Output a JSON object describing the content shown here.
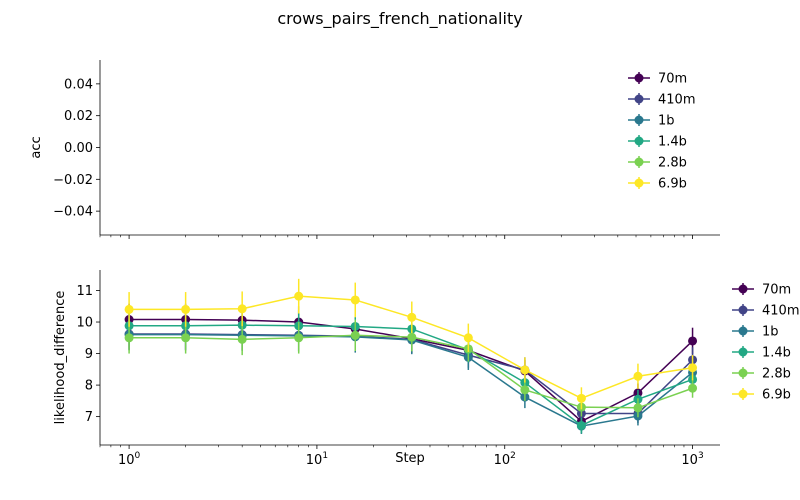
{
  "chart_data": {
    "title": "crows_pairs_french_nationality",
    "xlabel": "Step",
    "x": [
      1,
      2,
      4,
      8,
      16,
      32,
      64,
      128,
      256,
      512,
      1000
    ],
    "x_ticks": [
      {
        "value": 1,
        "base": "10",
        "exp": "0"
      },
      {
        "value": 10,
        "base": "10",
        "exp": "1"
      },
      {
        "value": 100,
        "base": "10",
        "exp": "2"
      },
      {
        "value": 1000,
        "base": "10",
        "exp": "3"
      }
    ],
    "xlim": [
      0.7,
      1400
    ],
    "x_scale": "log",
    "subplots": [
      {
        "type": "line",
        "ylabel": "acc",
        "ylim": [
          -0.055,
          0.055
        ],
        "yticks": [
          0.04,
          0.02,
          0.0,
          -0.02,
          -0.04
        ],
        "ytick_labels": [
          "0.04",
          "0.02",
          "0.00",
          "−0.02",
          "−0.04"
        ],
        "show_x_tick_labels": false,
        "legend": "top-right inside",
        "series": [
          {
            "name": "70m",
            "color": "#440154"
          },
          {
            "name": "410m",
            "color": "#414487"
          },
          {
            "name": "1b",
            "color": "#2a788e"
          },
          {
            "name": "1.4b",
            "color": "#22a884"
          },
          {
            "name": "2.8b",
            "color": "#7ad151"
          },
          {
            "name": "6.9b",
            "color": "#fde725"
          }
        ]
      },
      {
        "type": "line",
        "ylabel": "likelihood_difference",
        "ylim": [
          6.1,
          11.65
        ],
        "yticks": [
          7,
          8,
          9,
          10,
          11
        ],
        "ytick_labels": [
          "7",
          "8",
          "9",
          "10",
          "11"
        ],
        "show_x_tick_labels": true,
        "legend": "right outside",
        "series": [
          {
            "name": "70m",
            "color": "#440154",
            "values": [
              10.08,
              10.08,
              10.06,
              10.0,
              9.78,
              9.47,
              9.1,
              8.45,
              6.85,
              7.75,
              9.4
            ],
            "errors": [
              0.5,
              0.5,
              0.5,
              0.5,
              0.5,
              0.45,
              0.4,
              0.35,
              0.25,
              0.3,
              0.42
            ]
          },
          {
            "name": "410m",
            "color": "#414487",
            "values": [
              9.62,
              9.62,
              9.6,
              9.58,
              9.55,
              9.45,
              8.95,
              8.48,
              7.1,
              7.1,
              8.8
            ],
            "errors": [
              0.5,
              0.5,
              0.5,
              0.5,
              0.5,
              0.45,
              0.4,
              0.4,
              0.25,
              0.3,
              0.4
            ]
          },
          {
            "name": "1b",
            "color": "#2a788e",
            "values": [
              9.6,
              9.6,
              9.58,
              9.56,
              9.53,
              9.43,
              8.88,
              7.62,
              6.7,
              7.02,
              8.4
            ],
            "errors": [
              0.5,
              0.5,
              0.5,
              0.5,
              0.5,
              0.45,
              0.4,
              0.35,
              0.25,
              0.3,
              0.4
            ]
          },
          {
            "name": "1.4b",
            "color": "#22a884",
            "values": [
              9.88,
              9.88,
              9.9,
              9.88,
              9.86,
              9.78,
              9.12,
              8.08,
              6.72,
              7.55,
              8.18
            ],
            "errors": [
              0.5,
              0.5,
              0.5,
              0.5,
              0.5,
              0.45,
              0.4,
              0.35,
              0.25,
              0.3,
              0.35
            ]
          },
          {
            "name": "2.8b",
            "color": "#7ad151",
            "values": [
              9.5,
              9.5,
              9.45,
              9.5,
              9.58,
              9.52,
              9.15,
              7.85,
              7.3,
              7.28,
              7.9
            ],
            "errors": [
              0.5,
              0.5,
              0.5,
              0.5,
              0.5,
              0.45,
              0.4,
              0.35,
              0.3,
              0.3,
              0.3
            ]
          },
          {
            "name": "6.9b",
            "color": "#fde725",
            "values": [
              10.4,
              10.4,
              10.42,
              10.82,
              10.7,
              10.15,
              9.5,
              8.48,
              7.58,
              8.28,
              8.55
            ],
            "errors": [
              0.55,
              0.55,
              0.55,
              0.55,
              0.55,
              0.5,
              0.45,
              0.4,
              0.35,
              0.4,
              0.4
            ]
          }
        ]
      }
    ]
  }
}
